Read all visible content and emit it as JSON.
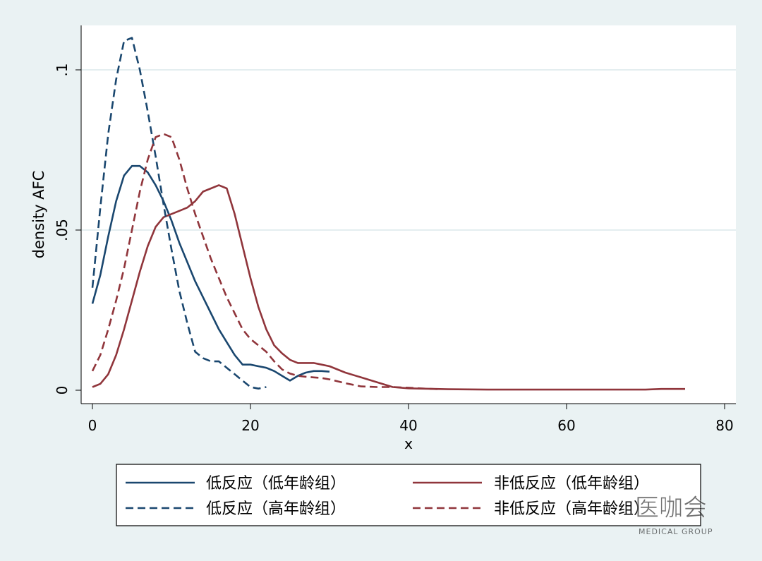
{
  "chart_data": {
    "type": "line",
    "xlabel": "x",
    "ylabel": "density AFC",
    "xlim": [
      0,
      80
    ],
    "ylim": [
      0,
      0.11
    ],
    "x_ticks": [
      0,
      20,
      40,
      60,
      80
    ],
    "x_tick_labels": [
      "0",
      "20",
      "40",
      "60",
      "80"
    ],
    "y_ticks": [
      0,
      0.05,
      0.1
    ],
    "y_tick_labels": [
      "0",
      ".05",
      ".1"
    ],
    "grid": "horizontal",
    "legend_position": "bottom",
    "series": [
      {
        "name": "低反应（低年龄组）",
        "color": "#1a476f",
        "dash": "solid",
        "x": [
          0,
          1,
          2,
          3,
          4,
          5,
          6,
          7,
          8,
          9,
          10,
          11,
          12,
          13,
          14,
          15,
          16,
          17,
          18,
          19,
          20,
          21,
          22,
          23,
          24,
          25,
          26,
          27,
          28,
          29,
          30
        ],
        "y": [
          0.027,
          0.036,
          0.048,
          0.059,
          0.067,
          0.07,
          0.07,
          0.068,
          0.064,
          0.059,
          0.053,
          0.046,
          0.04,
          0.034,
          0.029,
          0.024,
          0.019,
          0.015,
          0.011,
          0.008,
          0.008,
          0.0075,
          0.007,
          0.006,
          0.0045,
          0.003,
          0.0045,
          0.0055,
          0.006,
          0.006,
          0.0058
        ]
      },
      {
        "name": "非低反应（低年龄组）",
        "color": "#90353b",
        "dash": "solid",
        "x": [
          0,
          1,
          2,
          3,
          4,
          5,
          6,
          7,
          8,
          9,
          10,
          11,
          12,
          13,
          14,
          15,
          16,
          17,
          18,
          19,
          20,
          21,
          22,
          23,
          24,
          25,
          26,
          27,
          28,
          29,
          30,
          32,
          34,
          36,
          38,
          40,
          45,
          50,
          55,
          60,
          65,
          70,
          72,
          75
        ],
        "y": [
          0.001,
          0.002,
          0.005,
          0.011,
          0.019,
          0.028,
          0.037,
          0.045,
          0.051,
          0.054,
          0.055,
          0.056,
          0.057,
          0.059,
          0.062,
          0.063,
          0.064,
          0.063,
          0.055,
          0.045,
          0.035,
          0.026,
          0.019,
          0.014,
          0.0115,
          0.0095,
          0.0085,
          0.0085,
          0.0085,
          0.008,
          0.0075,
          0.0055,
          0.004,
          0.0025,
          0.001,
          0.0006,
          0.0003,
          0.0002,
          0.0002,
          0.0002,
          0.0002,
          0.0002,
          0.0004,
          0.0004
        ]
      },
      {
        "name": "低反应（高年龄组）",
        "color": "#1a476f",
        "dash": "dashed",
        "x": [
          0,
          1,
          2,
          3,
          4,
          5,
          6,
          7,
          8,
          9,
          10,
          11,
          12,
          13,
          14,
          15,
          16,
          17,
          18,
          19,
          20,
          21,
          22
        ],
        "y": [
          0.032,
          0.057,
          0.08,
          0.097,
          0.109,
          0.11,
          0.1,
          0.087,
          0.073,
          0.058,
          0.044,
          0.031,
          0.021,
          0.012,
          0.01,
          0.009,
          0.009,
          0.007,
          0.005,
          0.003,
          0.001,
          0.0005,
          0.001
        ]
      },
      {
        "name": "非低反应（高年龄组）",
        "color": "#90353b",
        "dash": "dashed",
        "x": [
          0,
          1,
          2,
          3,
          4,
          5,
          6,
          7,
          8,
          9,
          10,
          11,
          12,
          13,
          14,
          15,
          16,
          17,
          18,
          19,
          20,
          21,
          22,
          23,
          24,
          25,
          26,
          27,
          28,
          29,
          30,
          32,
          34,
          36,
          38,
          40,
          42,
          44
        ],
        "y": [
          0.006,
          0.011,
          0.019,
          0.028,
          0.038,
          0.05,
          0.062,
          0.072,
          0.079,
          0.08,
          0.079,
          0.072,
          0.063,
          0.055,
          0.048,
          0.041,
          0.035,
          0.029,
          0.024,
          0.019,
          0.016,
          0.014,
          0.012,
          0.009,
          0.0065,
          0.0052,
          0.0045,
          0.0042,
          0.004,
          0.0038,
          0.0034,
          0.0022,
          0.0012,
          0.001,
          0.001,
          0.0008,
          0.0005,
          0.0003
        ]
      }
    ]
  },
  "watermark": {
    "text": "医咖会",
    "subtext": "MEDICAL GROUP"
  }
}
